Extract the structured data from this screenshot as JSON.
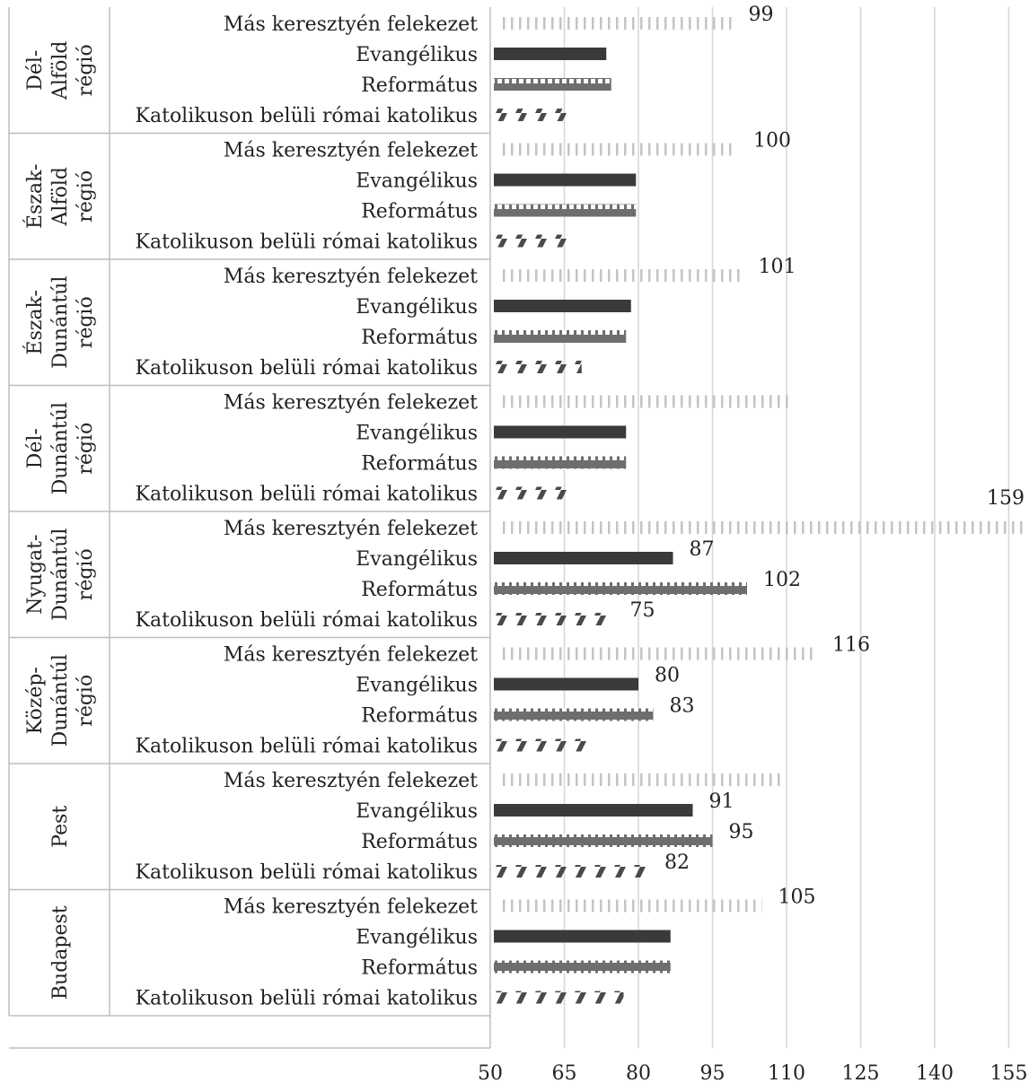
{
  "chart_data": {
    "type": "bar",
    "orientation": "horizontal",
    "title": "",
    "xlabel": "",
    "ylabel": "",
    "xlim": [
      50,
      157
    ],
    "xticks": [
      50,
      65,
      80,
      95,
      110,
      125,
      140,
      155
    ],
    "grid": "vertical",
    "legend": "none",
    "series_order": [
      "Más keresztyén felekezet",
      "Evangélikus",
      "Református",
      "Katolikuson belüli római katolikus"
    ],
    "series_patterns": {
      "Más keresztyén felekezet": "vertical-dashes",
      "Evangélikus": "solid",
      "Református": "checker",
      "Katolikuson belüli római katolikus": "diagonal-dashes"
    },
    "colors": {
      "dark": "#3a3a3a",
      "mid": "#6e6e6e",
      "light": "#c4c4c4",
      "grid": "#d6d6d6",
      "axis": "#bdbdbd"
    },
    "groups": [
      {
        "name": "Dél-Alföld régió",
        "lines": [
          "Dél-",
          "Alföld",
          "régió"
        ],
        "values": {
          "Más keresztyén felekezet": 99,
          "Evangélikus": 73.5,
          "Református": 74.5,
          "Katolikuson belüli római katolikus": 66
        },
        "labels": {
          "Más keresztyén felekezet": "99"
        }
      },
      {
        "name": "Észak-Alföld régió",
        "lines": [
          "Észak-",
          "Alföld",
          "régió"
        ],
        "values": {
          "Más keresztyén felekezet": 100,
          "Evangélikus": 79.5,
          "Református": 79.5,
          "Katolikuson belüli római katolikus": 67
        },
        "labels": {
          "Más keresztyén felekezet": "100"
        }
      },
      {
        "name": "Észak-Dunántúl régió",
        "lines": [
          "Észak-",
          "Dunántúl",
          "régió"
        ],
        "values": {
          "Más keresztyén felekezet": 101,
          "Evangélikus": 78.5,
          "Református": 77.5,
          "Katolikuson belüli római katolikus": 68.5
        },
        "labels": {
          "Más keresztyén felekezet": "101"
        }
      },
      {
        "name": "Dél-Dunántúl régió",
        "lines": [
          "Dél-",
          "Dunántúl",
          "régió"
        ],
        "values": {
          "Más keresztyén felekezet": 111,
          "Evangélikus": 77.5,
          "Református": 77.5,
          "Katolikuson belüli római katolikus": 67
        },
        "labels": {}
      },
      {
        "name": "Nyugat-Dunántúl régió",
        "lines": [
          "Nyugat-",
          "Dunántúl",
          "régió"
        ],
        "values": {
          "Más keresztyén felekezet": 159,
          "Evangélikus": 87,
          "Református": 102,
          "Katolikuson belüli római katolikus": 75
        },
        "labels": {
          "Más keresztyén felekezet": "159",
          "Evangélikus": "87",
          "Református": "102",
          "Katolikuson belüli római katolikus": "75"
        }
      },
      {
        "name": "Közép-Dunántúl régió",
        "lines": [
          "Közép-",
          "Dunántúl",
          "régió"
        ],
        "values": {
          "Más keresztyén felekezet": 116,
          "Evangélikus": 80,
          "Református": 83,
          "Katolikuson belüli római katolikus": 70
        },
        "labels": {
          "Más keresztyén felekezet": "116",
          "Evangélikus": "80",
          "Református": "83"
        }
      },
      {
        "name": "Pest",
        "lines": [
          "Pest"
        ],
        "values": {
          "Más keresztyén felekezet": 109.5,
          "Evangélikus": 91,
          "Református": 95,
          "Katolikuson belüli római katolikus": 82
        },
        "labels": {
          "Evangélikus": "91",
          "Református": "95",
          "Katolikuson belüli római katolikus": "82"
        }
      },
      {
        "name": "Budapest",
        "lines": [
          "Budapest"
        ],
        "values": {
          "Más keresztyén felekezet": 105,
          "Evangélikus": 86.5,
          "Református": 86.5,
          "Katolikuson belüli római katolikus": 77
        },
        "labels": {
          "Más keresztyén felekezet": "105"
        }
      }
    ]
  }
}
